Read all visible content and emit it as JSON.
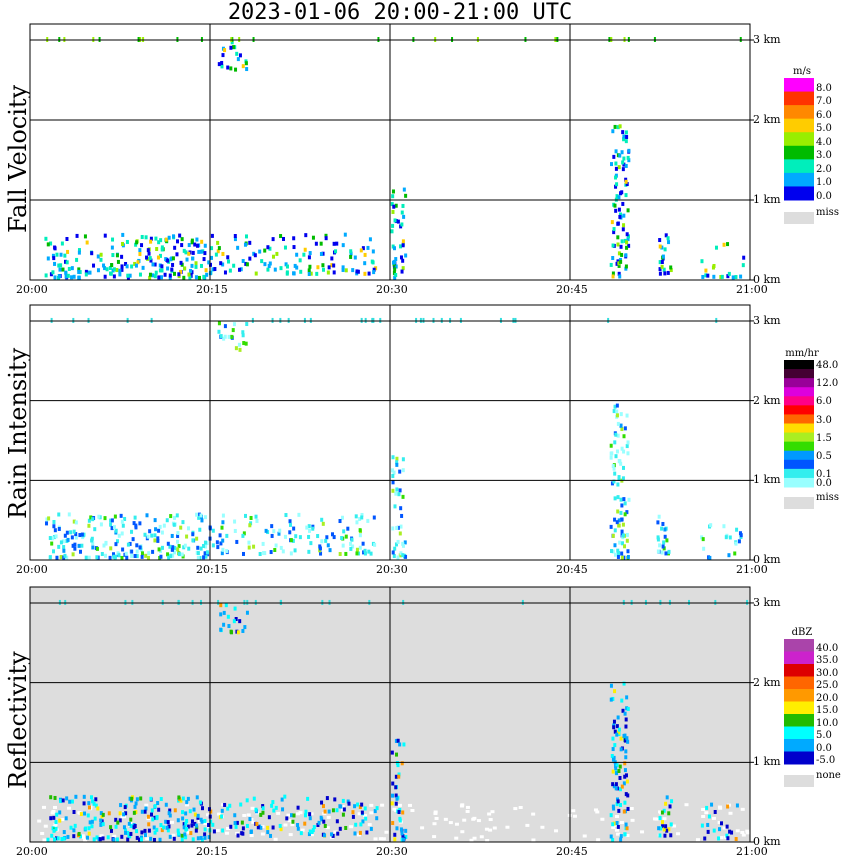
{
  "title": "2023-01-06   20:00-21:00 UTC",
  "x_ticks": [
    "20:00",
    "20:15",
    "20:30",
    "20:45",
    "21:00"
  ],
  "y_ticks": [
    "0 km",
    "1 km",
    "2 km",
    "3 km"
  ],
  "colors": {
    "background_miss": "#dddddd",
    "grid": "#000000"
  },
  "chart_data": [
    {
      "type": "heatmap",
      "title": "Fall Velocity",
      "unit": "m/s",
      "xlim": [
        "20:00",
        "21:00"
      ],
      "ylim_km": [
        0,
        3.2
      ],
      "legend": {
        "levels": [
          "8.0",
          "7.0",
          "6.0",
          "5.0",
          "4.0",
          "3.0",
          "2.0",
          "1.0",
          "0.0"
        ],
        "colors": [
          "#ff00ff",
          "#ff3300",
          "#ff8800",
          "#ffcc00",
          "#99ee00",
          "#00bb00",
          "#00eebb",
          "#00aaff",
          "#0000ee"
        ],
        "missing_label": "miss",
        "missing_color": "#dddddd"
      },
      "panel_background": "#ffffff"
    },
    {
      "type": "heatmap",
      "title": "Rain Intensity",
      "unit": "mm/hr",
      "xlim": [
        "20:00",
        "21:00"
      ],
      "ylim_km": [
        0,
        3.2
      ],
      "legend": {
        "levels": [
          "48.0",
          "",
          "12.0",
          "",
          "6.0",
          "",
          "3.0",
          "",
          "1.5",
          "",
          "0.5",
          "",
          "0.1",
          "0.0"
        ],
        "colors": [
          "#000000",
          "#440033",
          "#990099",
          "#dd00dd",
          "#ff0088",
          "#ff0000",
          "#ff6600",
          "#ffdd00",
          "#aaee22",
          "#33dd00",
          "#0099ff",
          "#0055ff",
          "#33eeee",
          "#99ffff"
        ],
        "missing_label": "miss",
        "missing_color": "#dddddd"
      },
      "panel_background": "#ffffff"
    },
    {
      "type": "heatmap",
      "title": "Reflectivity",
      "unit": "dBZ",
      "xlim": [
        "20:00",
        "21:00"
      ],
      "ylim_km": [
        0,
        3.2
      ],
      "legend": {
        "levels": [
          "40.0",
          "35.0",
          "30.0",
          "25.0",
          "20.0",
          "15.0",
          "10.0",
          "5.0",
          "0.0",
          "-5.0"
        ],
        "colors": [
          "#aa44aa",
          "#cc22cc",
          "#dd0000",
          "#ff6600",
          "#ff9900",
          "#ffee00",
          "#22bb00",
          "#00ffff",
          "#00aaff",
          "#0000cc"
        ],
        "missing_label": "none",
        "missing_color": "#dddddd"
      },
      "panel_background": "#dddddd"
    }
  ]
}
